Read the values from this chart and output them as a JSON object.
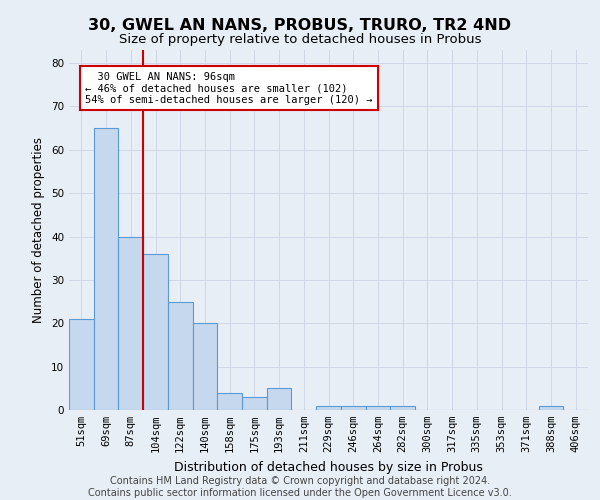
{
  "title": "30, GWEL AN NANS, PROBUS, TRURO, TR2 4ND",
  "subtitle": "Size of property relative to detached houses in Probus",
  "xlabel": "Distribution of detached houses by size in Probus",
  "ylabel": "Number of detached properties",
  "footer_line1": "Contains HM Land Registry data © Crown copyright and database right 2024.",
  "footer_line2": "Contains public sector information licensed under the Open Government Licence v3.0.",
  "categories": [
    "51sqm",
    "69sqm",
    "87sqm",
    "104sqm",
    "122sqm",
    "140sqm",
    "158sqm",
    "175sqm",
    "193sqm",
    "211sqm",
    "229sqm",
    "246sqm",
    "264sqm",
    "282sqm",
    "300sqm",
    "317sqm",
    "335sqm",
    "353sqm",
    "371sqm",
    "388sqm",
    "406sqm"
  ],
  "values": [
    21,
    65,
    40,
    36,
    25,
    20,
    4,
    3,
    5,
    0,
    1,
    1,
    1,
    1,
    0,
    0,
    0,
    0,
    0,
    1,
    0
  ],
  "bar_color": "#c5d8ed",
  "bar_edge_color": "#5b9bd5",
  "bar_linewidth": 0.8,
  "vline_x_idx": 2,
  "vline_color": "#cc0000",
  "vline_linewidth": 1.5,
  "annotation_text": "  30 GWEL AN NANS: 96sqm\n← 46% of detached houses are smaller (102)\n54% of semi-detached houses are larger (120) →",
  "annotation_box_color": "#ffffff",
  "annotation_box_edge_color": "#cc0000",
  "ylim": [
    0,
    83
  ],
  "yticks": [
    0,
    10,
    20,
    30,
    40,
    50,
    60,
    70,
    80
  ],
  "grid_color": "#d0d8e8",
  "bg_color": "#e8eef6",
  "axes_bg_color": "#e8eef6",
  "title_fontsize": 11.5,
  "subtitle_fontsize": 9.5,
  "axis_label_fontsize": 8.5,
  "tick_fontsize": 7.5,
  "footer_fontsize": 7.0
}
